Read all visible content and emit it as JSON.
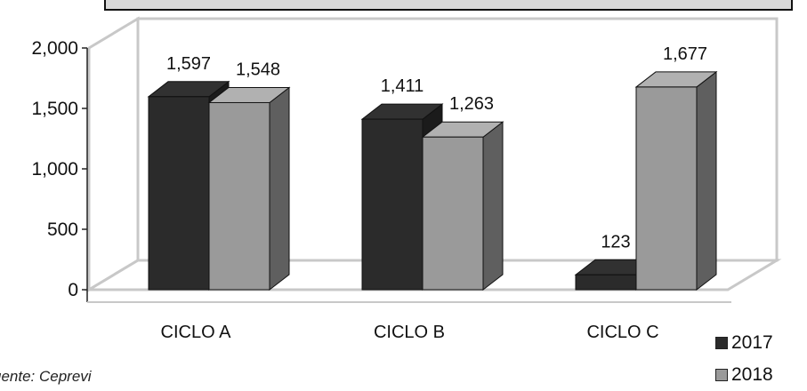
{
  "chart_data": {
    "type": "bar",
    "categories": [
      "CICLO A",
      "CICLO B",
      "CICLO C"
    ],
    "series": [
      {
        "name": "2017",
        "values": [
          1597,
          1411,
          123
        ],
        "labels": [
          "1,597",
          "1,411",
          "123"
        ],
        "color": "#2b2b2b"
      },
      {
        "name": "2018",
        "values": [
          1548,
          1263,
          1677
        ],
        "labels": [
          "1,548",
          "1,263",
          "1,677"
        ],
        "color": "#9a9a9a"
      }
    ],
    "ylim": [
      0,
      2000
    ],
    "yticks": [
      0,
      500,
      1000,
      1500,
      2000
    ],
    "ytick_labels": [
      "0",
      "500",
      "1,000",
      "1,500",
      "2,000"
    ],
    "title": "",
    "xlabel": "",
    "ylabel": "",
    "grid": false,
    "legend_position": "bottom-right",
    "style": "3d-bar"
  },
  "source": "uente: Ceprevi"
}
